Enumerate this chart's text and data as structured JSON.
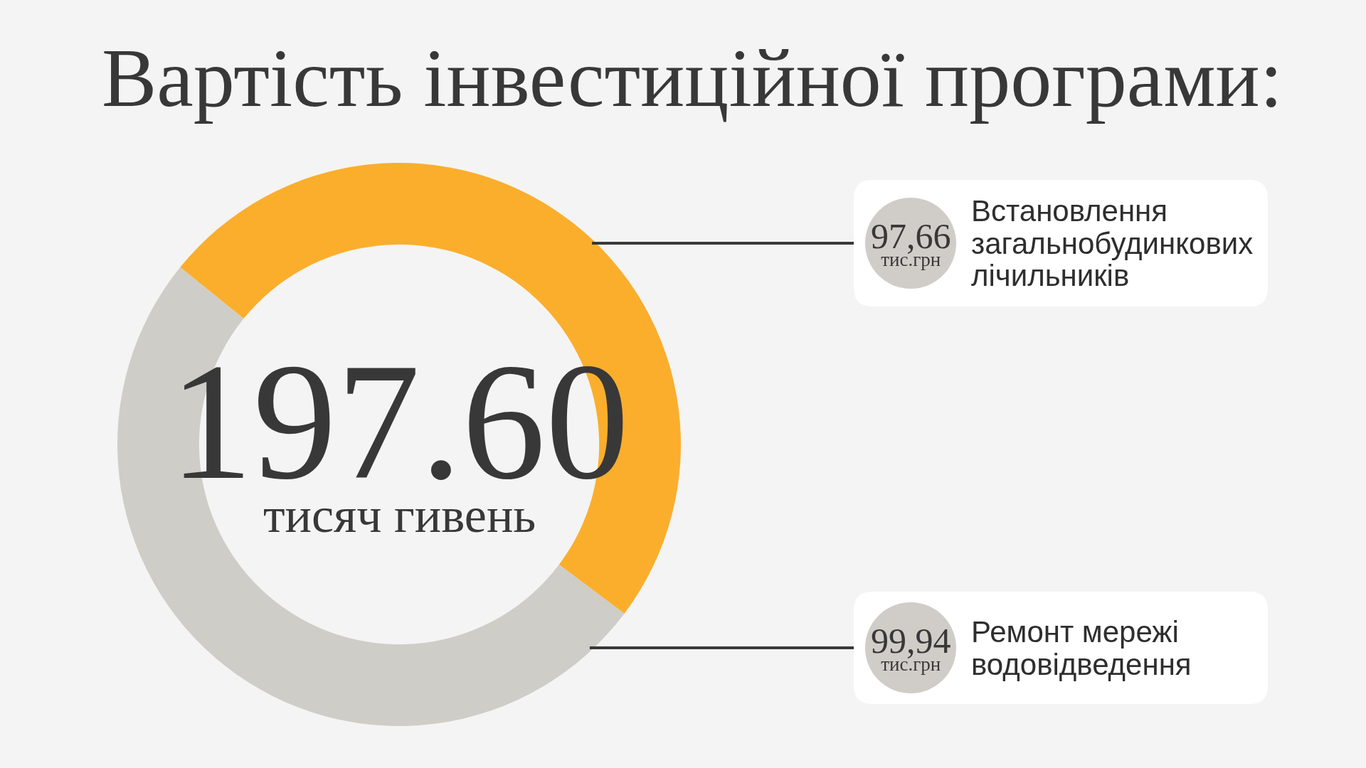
{
  "chart_data": {
    "type": "donut",
    "title": "Вартість інвестиційної програми:",
    "categories": [
      "Встановлення загальнобудинкових лічильників",
      "Ремонт мережі водовідведення"
    ],
    "values": [
      97.66,
      99.94
    ],
    "colors": [
      "#fbae2c",
      "#cfcdc8"
    ],
    "value_labels": [
      "97,66 тис.грн",
      "99,94 тис.грн"
    ],
    "annotations": [
      "197.60",
      "тисяч гивень"
    ],
    "legend": false
  }
}
